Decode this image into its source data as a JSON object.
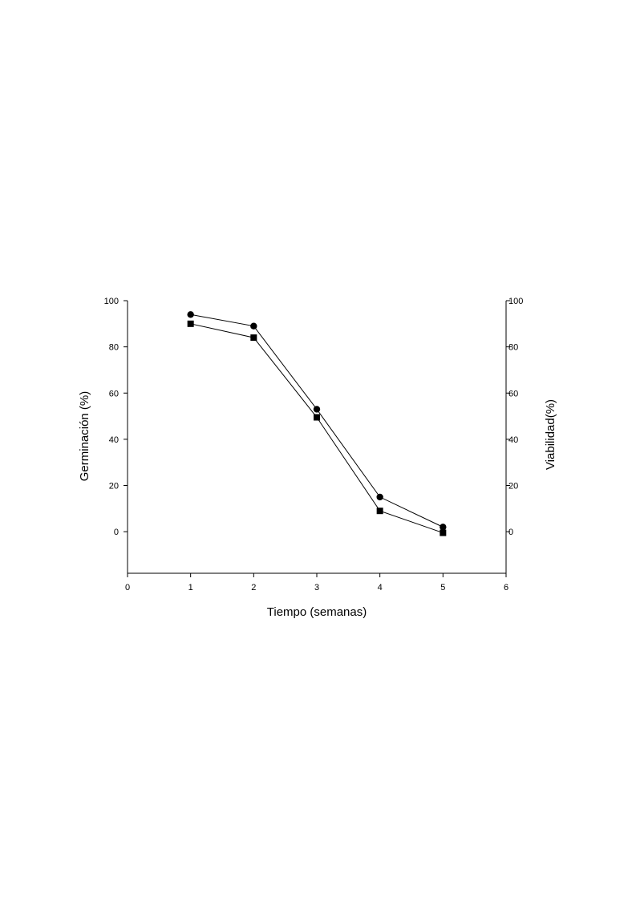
{
  "chart_data": {
    "type": "line",
    "xlabel": "Tiempo (semanas)",
    "ylabel": "Germinación (%)",
    "y2label": "Viabilidad(%)",
    "xlim": [
      0,
      6
    ],
    "ylim": [
      -18,
      100
    ],
    "y2lim": [
      -18,
      100
    ],
    "xticks": [
      "0",
      "1",
      "2",
      "3",
      "4",
      "5",
      "6"
    ],
    "yticks": [
      "0",
      "20",
      "40",
      "60",
      "80",
      "100"
    ],
    "y2ticks": [
      "0",
      "20",
      "40",
      "60",
      "80",
      "100"
    ],
    "grid": false,
    "legend": "none",
    "series": [
      {
        "marker": "circle",
        "axis": "left",
        "color": "#000000",
        "x": [
          1,
          2,
          3,
          4,
          5
        ],
        "y": [
          94,
          89,
          53,
          15,
          2
        ]
      },
      {
        "marker": "square",
        "axis": "right",
        "color": "#000000",
        "x": [
          1,
          2,
          3,
          4,
          5
        ],
        "y": [
          90,
          84,
          49.5,
          9,
          -0.5
        ]
      }
    ]
  }
}
